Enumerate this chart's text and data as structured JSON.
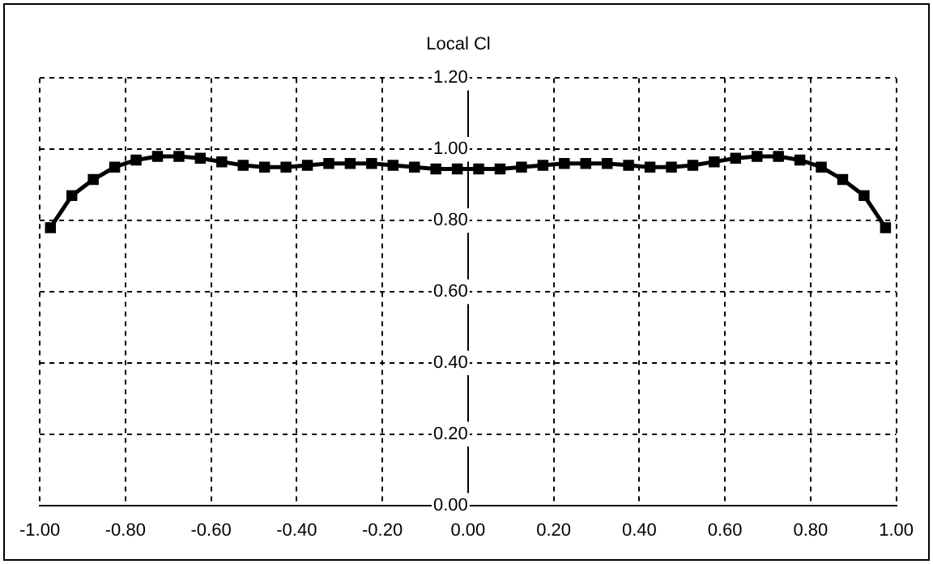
{
  "chart_data": {
    "type": "line",
    "title": "Local Cl",
    "x": [
      -0.975,
      -0.925,
      -0.875,
      -0.825,
      -0.775,
      -0.725,
      -0.675,
      -0.625,
      -0.575,
      -0.525,
      -0.475,
      -0.425,
      -0.375,
      -0.325,
      -0.275,
      -0.225,
      -0.175,
      -0.125,
      -0.075,
      -0.025,
      0.025,
      0.075,
      0.125,
      0.175,
      0.225,
      0.275,
      0.325,
      0.375,
      0.425,
      0.475,
      0.525,
      0.575,
      0.625,
      0.675,
      0.725,
      0.775,
      0.825,
      0.875,
      0.925,
      0.975
    ],
    "series": [
      {
        "color": "#000000",
        "values": [
          0.78,
          0.87,
          0.915,
          0.95,
          0.97,
          0.98,
          0.98,
          0.975,
          0.965,
          0.955,
          0.95,
          0.95,
          0.955,
          0.96,
          0.96,
          0.96,
          0.955,
          0.95,
          0.945,
          0.945,
          0.945,
          0.945,
          0.95,
          0.955,
          0.96,
          0.96,
          0.96,
          0.955,
          0.95,
          0.95,
          0.955,
          0.965,
          0.975,
          0.98,
          0.98,
          0.97,
          0.95,
          0.915,
          0.87,
          0.78
        ]
      }
    ],
    "xlim": [
      -1,
      1
    ],
    "ylim": [
      0,
      1.2
    ],
    "xticks": [
      {
        "value": -1,
        "label": "-1.00"
      },
      {
        "value": -0.8,
        "label": "-0.80"
      },
      {
        "value": -0.6,
        "label": "-0.60"
      },
      {
        "value": -0.4,
        "label": "-0.40"
      },
      {
        "value": -0.2,
        "label": "-0.20"
      },
      {
        "value": 0,
        "label": "0.00"
      },
      {
        "value": 0.2,
        "label": "0.20"
      },
      {
        "value": 0.4,
        "label": "0.40"
      },
      {
        "value": 0.6,
        "label": "0.60"
      },
      {
        "value": 0.8,
        "label": "0.80"
      },
      {
        "value": 1,
        "label": "1.00"
      }
    ],
    "yticks": [
      {
        "value": 0,
        "label": "0.00"
      },
      {
        "value": 0.2,
        "label": "0.20"
      },
      {
        "value": 0.4,
        "label": "0.40"
      },
      {
        "value": 0.6,
        "label": "0.60"
      },
      {
        "value": 0.8,
        "label": "0.80"
      },
      {
        "value": 1,
        "label": "1.00"
      },
      {
        "value": 1.2,
        "label": "1.20"
      }
    ],
    "grid": true,
    "legend": false,
    "marker": "square",
    "line_style": "solid"
  }
}
